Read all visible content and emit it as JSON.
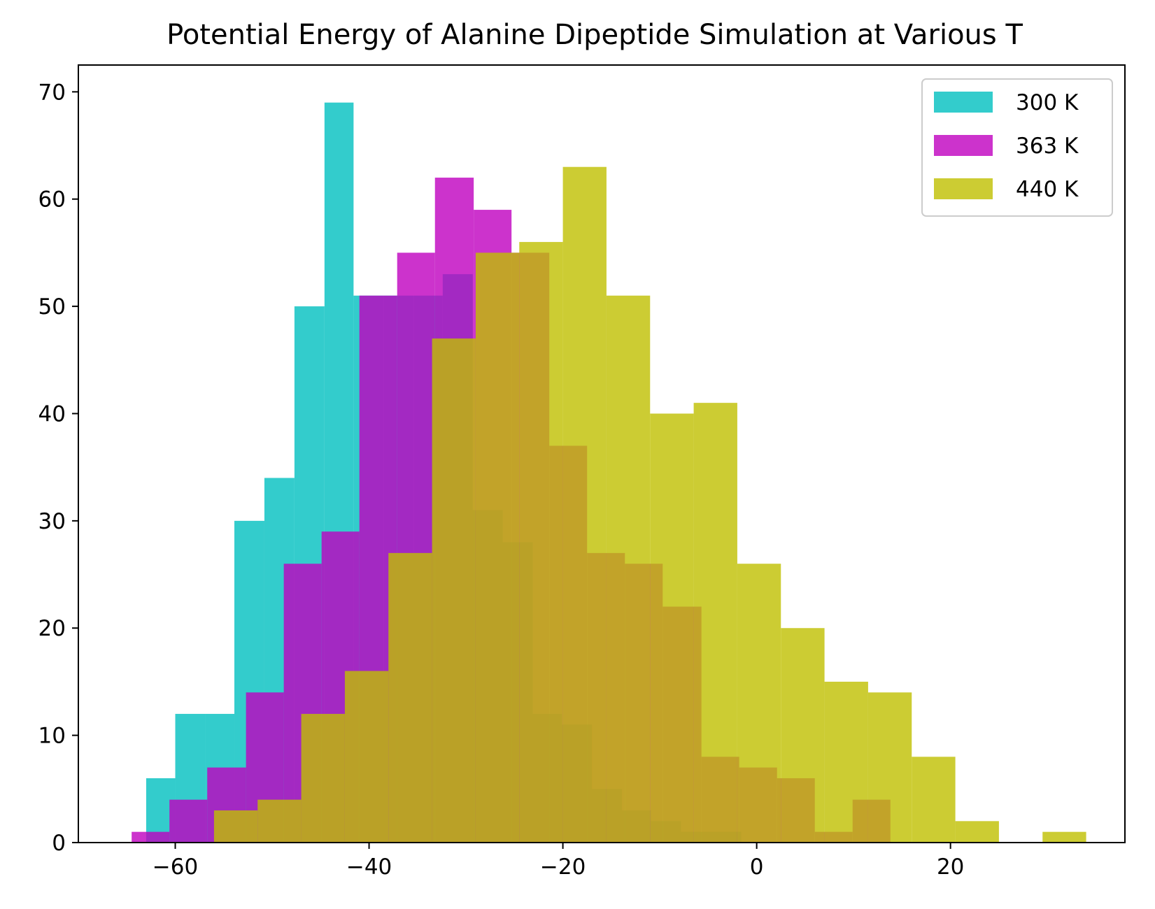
{
  "chart_data": {
    "type": "bar",
    "title": "Potential Energy of Alanine Dipeptide Simulation at Various T",
    "xlabel": "",
    "ylabel": "",
    "xlim": [
      -70,
      38
    ],
    "ylim": [
      0,
      72.5
    ],
    "xticks": [
      -60,
      -40,
      -20,
      0,
      20
    ],
    "xtick_labels": [
      "−60",
      "−40",
      "−20",
      "0",
      "20"
    ],
    "yticks": [
      0,
      10,
      20,
      30,
      40,
      50,
      60,
      70
    ],
    "ytick_labels": [
      "0",
      "10",
      "20",
      "30",
      "40",
      "50",
      "60",
      "70"
    ],
    "grid": false,
    "legend_position": "top-right",
    "series": [
      {
        "name": "300 K",
        "color": "#00bfbf",
        "bin_edges": [
          -63.0,
          -60.0,
          -56.9,
          -53.9,
          -50.8,
          -47.7,
          -44.6,
          -41.6,
          -38.5,
          -35.4,
          -32.4,
          -29.3,
          -26.2,
          -23.1,
          -20.1,
          -17.0,
          -13.9,
          -10.9,
          -7.8,
          -4.7,
          -1.6
        ],
        "counts": [
          6,
          12,
          12,
          30,
          34,
          50,
          69,
          51,
          51,
          51,
          53,
          31,
          28,
          12,
          11,
          5,
          3,
          2,
          1,
          1
        ]
      },
      {
        "name": "363 K",
        "color": "#bf00bf",
        "bin_edges": [
          -64.5,
          -60.6,
          -56.7,
          -52.7,
          -48.8,
          -44.9,
          -41.0,
          -37.1,
          -33.2,
          -29.2,
          -25.3,
          -21.4,
          -17.5,
          -13.6,
          -9.7,
          -5.7,
          -1.8,
          2.1,
          6.0,
          9.9,
          13.8
        ],
        "counts": [
          1,
          4,
          7,
          14,
          26,
          29,
          51,
          55,
          62,
          59,
          55,
          37,
          27,
          26,
          22,
          8,
          7,
          6,
          1,
          4
        ]
      },
      {
        "name": "440 K",
        "color": "#bfbf00",
        "bin_edges": [
          -56.0,
          -51.5,
          -47.0,
          -42.5,
          -38.0,
          -33.5,
          -29.0,
          -24.5,
          -20.0,
          -15.5,
          -11.0,
          -6.5,
          -2.0,
          2.5,
          7.0,
          11.5,
          16.0,
          20.5,
          25.0,
          29.5,
          34.0
        ],
        "counts": [
          3,
          4,
          12,
          16,
          27,
          47,
          55,
          56,
          63,
          51,
          40,
          41,
          26,
          20,
          15,
          14,
          8,
          2,
          0,
          1
        ]
      }
    ]
  }
}
